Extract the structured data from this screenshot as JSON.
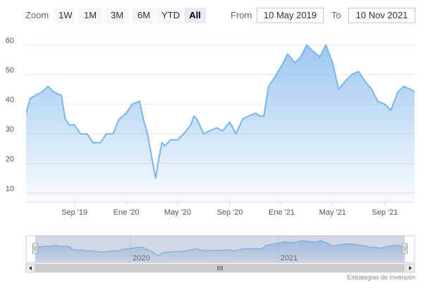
{
  "range_selector": {
    "zoom_label": "Zoom",
    "buttons": [
      "1W",
      "1M",
      "3M",
      "6M",
      "YTD",
      "All"
    ],
    "active": "All",
    "from_label": "From",
    "from_value": "10 May 2019",
    "to_label": "To",
    "to_value": "10 Nov 2021"
  },
  "credits": "Estrategias de Inversión",
  "colors": {
    "line": "#7cb5ec",
    "area_top": "#7cb5ec",
    "grid": "#e6e6e6",
    "navigator_mask": "#c8d0e8"
  },
  "chart_data": {
    "type": "area",
    "x_ticks": [
      "Sep '19",
      "Ene '20",
      "May '20",
      "Sep '20",
      "Ene '21",
      "May '21",
      "Sep '21"
    ],
    "y_ticks": [
      10,
      20,
      30,
      40,
      50,
      60
    ],
    "ylim": [
      7,
      64
    ],
    "grid": true,
    "navigator_labels": [
      "2020",
      "2021"
    ],
    "series": [
      {
        "x": [
          "2019-05-10",
          "2019-05-20",
          "2019-06-01",
          "2019-06-15",
          "2019-07-01",
          "2019-07-15",
          "2019-08-01",
          "2019-08-10",
          "2019-08-20",
          "2019-09-01",
          "2019-09-15",
          "2019-10-01",
          "2019-10-15",
          "2019-11-01",
          "2019-11-15",
          "2019-12-01",
          "2019-12-15",
          "2020-01-01",
          "2020-01-15",
          "2020-02-01",
          "2020-02-10",
          "2020-02-20",
          "2020-03-01",
          "2020-03-10",
          "2020-03-18",
          "2020-03-25",
          "2020-04-01",
          "2020-04-15",
          "2020-05-01",
          "2020-05-15",
          "2020-06-01",
          "2020-06-08",
          "2020-06-15",
          "2020-07-01",
          "2020-07-15",
          "2020-08-01",
          "2020-08-15",
          "2020-09-01",
          "2020-09-15",
          "2020-10-01",
          "2020-10-15",
          "2020-11-01",
          "2020-11-10",
          "2020-11-20",
          "2020-12-01",
          "2020-12-15",
          "2021-01-01",
          "2021-01-15",
          "2021-02-01",
          "2021-02-15",
          "2021-03-01",
          "2021-03-15",
          "2021-04-01",
          "2021-04-15",
          "2021-05-01",
          "2021-05-15",
          "2021-06-01",
          "2021-06-15",
          "2021-07-01",
          "2021-07-15",
          "2021-08-01",
          "2021-08-15",
          "2021-09-01",
          "2021-09-15",
          "2021-10-01",
          "2021-10-15",
          "2021-11-01",
          "2021-11-10"
        ],
        "y": [
          37,
          42,
          43,
          44,
          46,
          44,
          43,
          35,
          33,
          33,
          30,
          30,
          27,
          27,
          30,
          30,
          35,
          37,
          40,
          41,
          35,
          30,
          22,
          15,
          22,
          27,
          26,
          28,
          28,
          30,
          33,
          36,
          35,
          30,
          31,
          32,
          31,
          34,
          30,
          35,
          36,
          37,
          36,
          36,
          46,
          49,
          53,
          57,
          54,
          56,
          60,
          58,
          56,
          60,
          54,
          45,
          48,
          50,
          51,
          48,
          45,
          41,
          40,
          38,
          44,
          46,
          45,
          44
        ]
      }
    ]
  }
}
